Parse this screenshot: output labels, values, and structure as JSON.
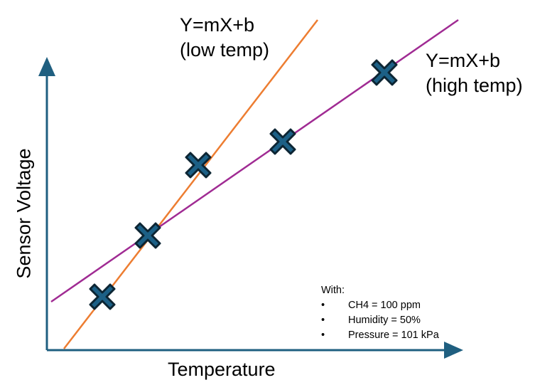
{
  "labels": {
    "low_temp_line": {
      "equation": "Y=mX+b",
      "condition": "(low temp)"
    },
    "high_temp_line": {
      "equation": "Y=mX+b",
      "condition": "(high temp)"
    },
    "x_axis_title": "Temperature",
    "y_axis_title": "Sensor Voltage"
  },
  "conditions": {
    "heading": "With:",
    "items": [
      "CH4 = 100 ppm",
      "Humidity = 50%",
      "Pressure = 101 kPa"
    ],
    "bullet": "•"
  },
  "colors": {
    "axis": "#1f5f80",
    "marker_fill": "#1c6086",
    "marker_outline": "#0c2533",
    "low_temp_line": "#ed7d31",
    "high_temp_line": "#a02b93"
  },
  "marker_icon": "x-cross-icon"
}
